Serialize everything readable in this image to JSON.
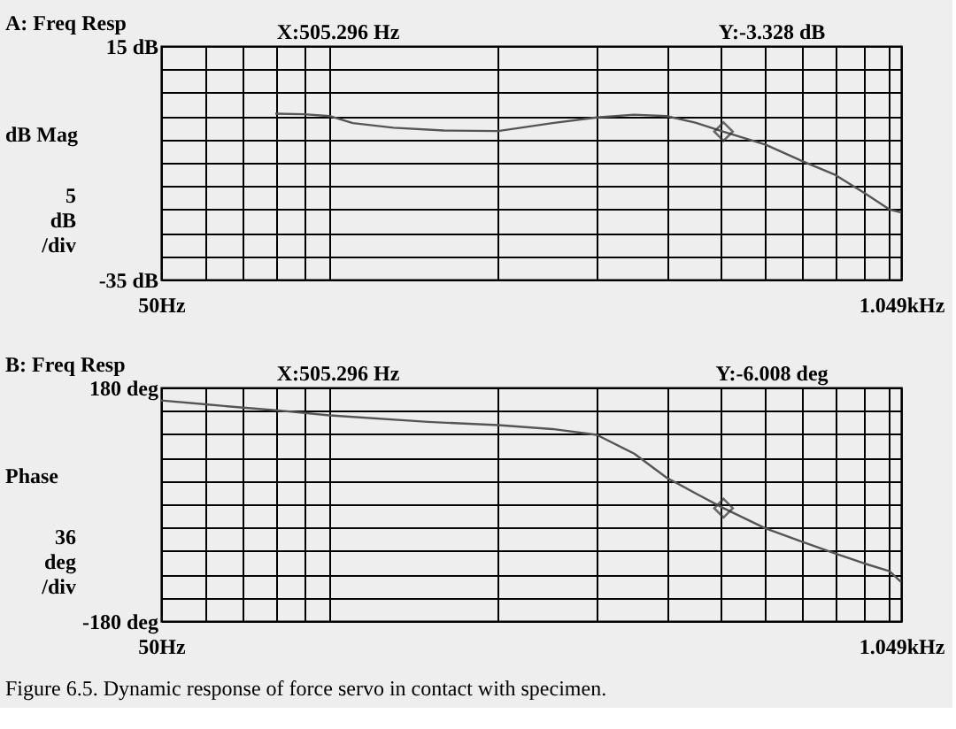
{
  "chart_data": [
    {
      "type": "line",
      "title": "A: Freq Resp",
      "ylabel": "dB Mag",
      "log": "x",
      "grid": true,
      "xlim": [
        50,
        1049
      ],
      "xticks": [
        {
          "value": 50,
          "label": "50Hz"
        },
        {
          "value": 60,
          "label": null
        },
        {
          "value": 70,
          "label": null
        },
        {
          "value": 80,
          "label": null
        },
        {
          "value": 90,
          "label": null
        },
        {
          "value": 100,
          "label": null
        },
        {
          "value": 200,
          "label": null
        },
        {
          "value": 300,
          "label": null
        },
        {
          "value": 400,
          "label": null
        },
        {
          "value": 500,
          "label": null
        },
        {
          "value": 600,
          "label": null
        },
        {
          "value": 700,
          "label": null
        },
        {
          "value": 800,
          "label": null
        },
        {
          "value": 900,
          "label": null
        },
        {
          "value": 1000,
          "label": null
        },
        {
          "value": 1049,
          "label": "1.049kHz"
        }
      ],
      "ylim": [
        -35,
        15
      ],
      "yticks": [
        {
          "value": 15,
          "label": "15 dB"
        },
        {
          "value": 10,
          "label": null
        },
        {
          "value": 5,
          "label": null
        },
        {
          "value": 0,
          "label": null
        },
        {
          "value": -5,
          "label": null
        },
        {
          "value": -10,
          "label": null
        },
        {
          "value": -15,
          "label": null
        },
        {
          "value": -20,
          "label": null
        },
        {
          "value": -25,
          "label": null
        },
        {
          "value": -30,
          "label": null
        },
        {
          "value": -35,
          "label": "-35 dB"
        }
      ],
      "annotations": [
        "X:505.296 Hz",
        "Y:-3.328 dB",
        "5 dB /div"
      ],
      "series": [
        {
          "color": "#555555",
          "x": [
            80,
            90,
            100,
            110,
            130,
            160,
            200,
            250,
            300,
            350,
            400,
            450,
            505.296,
            600,
            700,
            800,
            900,
            1000,
            1049
          ],
          "values": [
            0.5,
            0.4,
            0,
            -1.5,
            -2.5,
            -3.1,
            -3.2,
            -1.5,
            -0.3,
            0.3,
            0,
            -1.4,
            -3.328,
            -6.1,
            -9.7,
            -12.6,
            -16.4,
            -20,
            -20.6
          ]
        },
        {
          "type": "scatter",
          "marker": "diamond",
          "color": "#333333",
          "x": [
            505.296
          ],
          "values": [
            -3.328
          ]
        }
      ]
    },
    {
      "type": "line",
      "title": "B: Freq Resp",
      "ylabel": "Phase",
      "log": "x",
      "grid": true,
      "xlim": [
        50,
        1049
      ],
      "xticks": [
        {
          "value": 50,
          "label": "50Hz"
        },
        {
          "value": 60,
          "label": null
        },
        {
          "value": 70,
          "label": null
        },
        {
          "value": 80,
          "label": null
        },
        {
          "value": 90,
          "label": null
        },
        {
          "value": 100,
          "label": null
        },
        {
          "value": 200,
          "label": null
        },
        {
          "value": 300,
          "label": null
        },
        {
          "value": 400,
          "label": null
        },
        {
          "value": 500,
          "label": null
        },
        {
          "value": 600,
          "label": null
        },
        {
          "value": 700,
          "label": null
        },
        {
          "value": 800,
          "label": null
        },
        {
          "value": 900,
          "label": null
        },
        {
          "value": 1000,
          "label": null
        },
        {
          "value": 1049,
          "label": "1.049kHz"
        }
      ],
      "ylim": [
        -180,
        180
      ],
      "yticks": [
        {
          "value": 180,
          "label": "180 deg"
        },
        {
          "value": 144,
          "label": null
        },
        {
          "value": 108,
          "label": null
        },
        {
          "value": 72,
          "label": null
        },
        {
          "value": 36,
          "label": null
        },
        {
          "value": 0,
          "label": null
        },
        {
          "value": -36,
          "label": null
        },
        {
          "value": -72,
          "label": null
        },
        {
          "value": -108,
          "label": null
        },
        {
          "value": -144,
          "label": null
        },
        {
          "value": -180,
          "label": "-180 deg"
        }
      ],
      "annotations": [
        "X:505.296 Hz",
        "Y:-6.008 deg",
        "36 deg /div",
        "Figure 6.5. Dynamic response of force servo in contact with specimen."
      ],
      "series": [
        {
          "color": "#555555",
          "x": [
            50,
            60,
            70,
            80,
            100,
            150,
            200,
            250,
            300,
            350,
            400,
            450,
            505.296,
            600,
            700,
            800,
            900,
            1000,
            1049
          ],
          "values": [
            160,
            154,
            149,
            145,
            137,
            127,
            122,
            116,
            107,
            78,
            41,
            17,
            -6.008,
            -37,
            -58,
            -76,
            -91,
            -103,
            -120
          ]
        },
        {
          "type": "scatter",
          "marker": "diamond",
          "color": "#333333",
          "x": [
            505.296
          ],
          "values": [
            -6.008
          ]
        }
      ]
    }
  ]
}
